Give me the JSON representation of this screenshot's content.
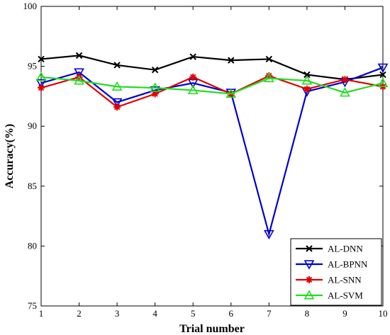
{
  "chart_data": {
    "type": "line",
    "xlabel": "Trial number",
    "ylabel": "Accuracy(%)",
    "xlim": [
      1,
      10
    ],
    "ylim": [
      75,
      100
    ],
    "xticks": [
      "1",
      "2",
      "3",
      "4",
      "5",
      "6",
      "7",
      "8",
      "9",
      "10"
    ],
    "yticks": [
      "75",
      "80",
      "85",
      "90",
      "95",
      "100"
    ],
    "x": [
      1,
      2,
      3,
      4,
      5,
      6,
      7,
      8,
      9,
      10
    ],
    "grid": false,
    "legend_position": "bottom-right",
    "series": [
      {
        "name": "AL-DNN",
        "color": "#000000",
        "marker": "x",
        "values": [
          95.6,
          95.9,
          95.1,
          94.7,
          95.8,
          95.5,
          95.6,
          94.3,
          93.9,
          94.3
        ]
      },
      {
        "name": "AL-BPNN",
        "color": "#0000cc",
        "marker": "triangle-down",
        "values": [
          93.6,
          94.5,
          92.0,
          93.0,
          93.6,
          92.8,
          81.0,
          92.9,
          93.7,
          94.9
        ]
      },
      {
        "name": "AL-SNN",
        "color": "#e00000",
        "marker": "asterisk",
        "values": [
          93.2,
          94.1,
          91.6,
          92.7,
          94.1,
          92.7,
          94.2,
          93.1,
          93.9,
          93.3
        ]
      },
      {
        "name": "AL-SVM",
        "color": "#22dd22",
        "marker": "triangle-up",
        "values": [
          94.1,
          93.8,
          93.3,
          93.2,
          93.0,
          92.7,
          94.0,
          93.8,
          92.8,
          93.6
        ]
      }
    ]
  }
}
